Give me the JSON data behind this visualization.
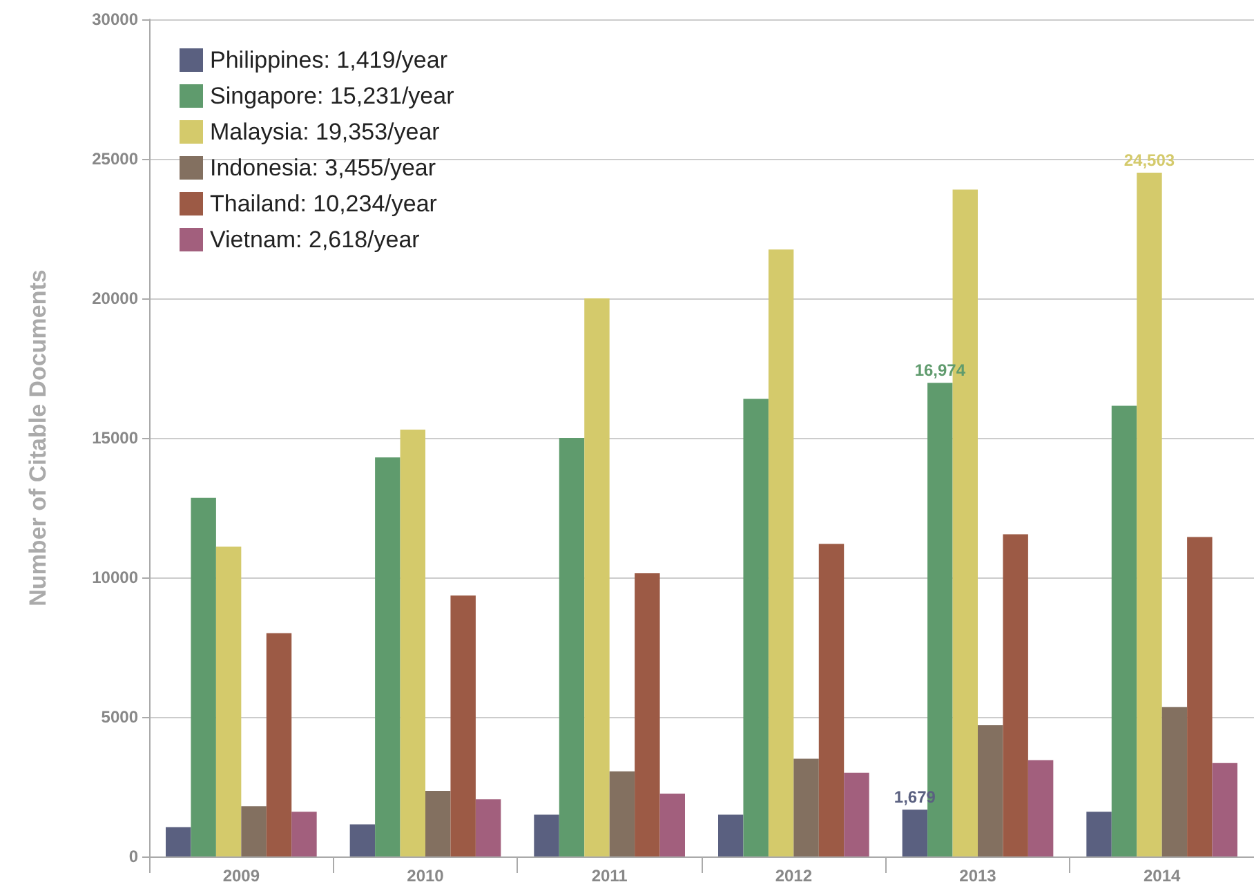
{
  "chart_data": {
    "type": "bar",
    "ylabel": "Number of Citable Documents",
    "categories": [
      "2009",
      "2010",
      "2011",
      "2012",
      "2013",
      "2014"
    ],
    "ylim": [
      0,
      30000
    ],
    "yticks": [
      0,
      5000,
      10000,
      15000,
      20000,
      25000,
      30000
    ],
    "grid": "y",
    "legend": "top left",
    "series": [
      {
        "name": "Philippines: 1,419/year",
        "color": "#5a6080",
        "values": [
          1050,
          1150,
          1500,
          1500,
          1679,
          1600
        ],
        "value_labels": [
          null,
          null,
          null,
          null,
          "1,679",
          null
        ]
      },
      {
        "name": "Singapore: 15,231/year",
        "color": "#5f9b6d",
        "values": [
          12850,
          14300,
          15000,
          16400,
          16974,
          16150
        ],
        "value_labels": [
          null,
          null,
          null,
          null,
          "16,974",
          null
        ]
      },
      {
        "name": "Malaysia: 19,353/year",
        "color": "#d4ca6b",
        "values": [
          11100,
          15300,
          20000,
          21750,
          23900,
          24503
        ],
        "value_labels": [
          null,
          null,
          null,
          null,
          null,
          "24,503"
        ]
      },
      {
        "name": "Indonesia: 3,455/year",
        "color": "#837060",
        "values": [
          1800,
          2350,
          3050,
          3500,
          4700,
          5350
        ]
      },
      {
        "name": "Thailand: 10,234/year",
        "color": "#9c5a45",
        "values": [
          8000,
          9350,
          10150,
          11200,
          11550,
          11450
        ]
      },
      {
        "name": "Vietnam: 2,618/year",
        "color": "#a25f7d",
        "values": [
          1600,
          2050,
          2250,
          3000,
          3450,
          3350
        ]
      }
    ]
  }
}
